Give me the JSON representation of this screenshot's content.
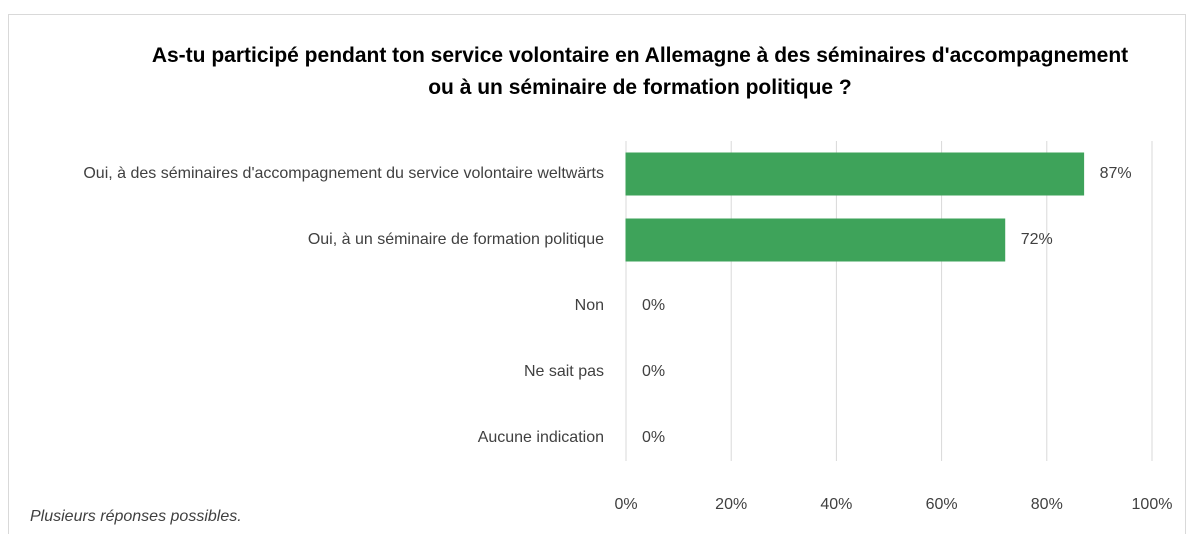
{
  "chart_data": {
    "type": "bar",
    "orientation": "horizontal",
    "title": "As-tu participé pendant ton service volontaire en Allemagne à des séminaires d'accompagnement ou à un séminaire de formation politique ?",
    "categories": [
      "Oui, à des séminaires d'accompagnement du service volontaire weltwärts",
      "Oui, à un séminaire de formation politique",
      "Non",
      "Ne sait pas",
      "Aucune indication"
    ],
    "values": [
      87,
      72,
      0,
      0,
      0
    ],
    "value_labels": [
      "87%",
      "72%",
      "0%",
      "0%",
      "0%"
    ],
    "color": "#3ea35a",
    "xlim": [
      0,
      100
    ],
    "xticks": [
      {
        "value": 0,
        "label": "0%"
      },
      {
        "value": 20,
        "label": "20%"
      },
      {
        "value": 40,
        "label": "40%"
      },
      {
        "value": 60,
        "label": "60%"
      },
      {
        "value": 80,
        "label": "80%"
      },
      {
        "value": 100,
        "label": "100%"
      }
    ],
    "grid": true,
    "note": "Plusieurs réponses possibles."
  }
}
